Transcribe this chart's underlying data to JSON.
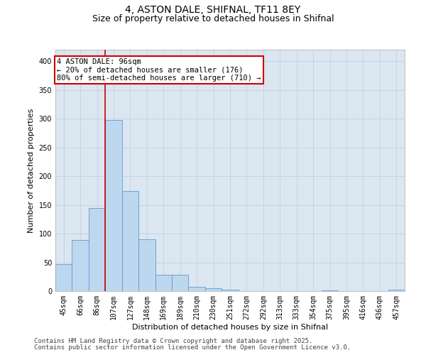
{
  "title_line1": "4, ASTON DALE, SHIFNAL, TF11 8EY",
  "title_line2": "Size of property relative to detached houses in Shifnal",
  "xlabel": "Distribution of detached houses by size in Shifnal",
  "ylabel": "Number of detached properties",
  "categories": [
    "45sqm",
    "66sqm",
    "86sqm",
    "107sqm",
    "127sqm",
    "148sqm",
    "169sqm",
    "189sqm",
    "210sqm",
    "230sqm",
    "251sqm",
    "272sqm",
    "292sqm",
    "313sqm",
    "333sqm",
    "354sqm",
    "375sqm",
    "395sqm",
    "416sqm",
    "436sqm",
    "457sqm"
  ],
  "values": [
    47,
    89,
    145,
    298,
    174,
    90,
    28,
    28,
    7,
    5,
    3,
    0,
    0,
    0,
    0,
    0,
    1,
    0,
    0,
    0,
    2
  ],
  "bar_color": "#bdd7ee",
  "bar_edge_color": "#5b9bd5",
  "red_line_x": 2.5,
  "annotation_text": "4 ASTON DALE: 96sqm\n← 20% of detached houses are smaller (176)\n80% of semi-detached houses are larger (710) →",
  "annotation_box_color": "#ffffff",
  "annotation_box_edge_color": "#cc0000",
  "ylim": [
    0,
    420
  ],
  "yticks": [
    0,
    50,
    100,
    150,
    200,
    250,
    300,
    350,
    400
  ],
  "footer_line1": "Contains HM Land Registry data © Crown copyright and database right 2025.",
  "footer_line2": "Contains public sector information licensed under the Open Government Licence v3.0.",
  "bg_color": "#ffffff",
  "plot_bg_color": "#dce6f1",
  "grid_color": "#b8cfe4",
  "title_fontsize": 10,
  "subtitle_fontsize": 9,
  "axis_label_fontsize": 8,
  "tick_fontsize": 7,
  "annotation_fontsize": 7.5,
  "footer_fontsize": 6.5
}
